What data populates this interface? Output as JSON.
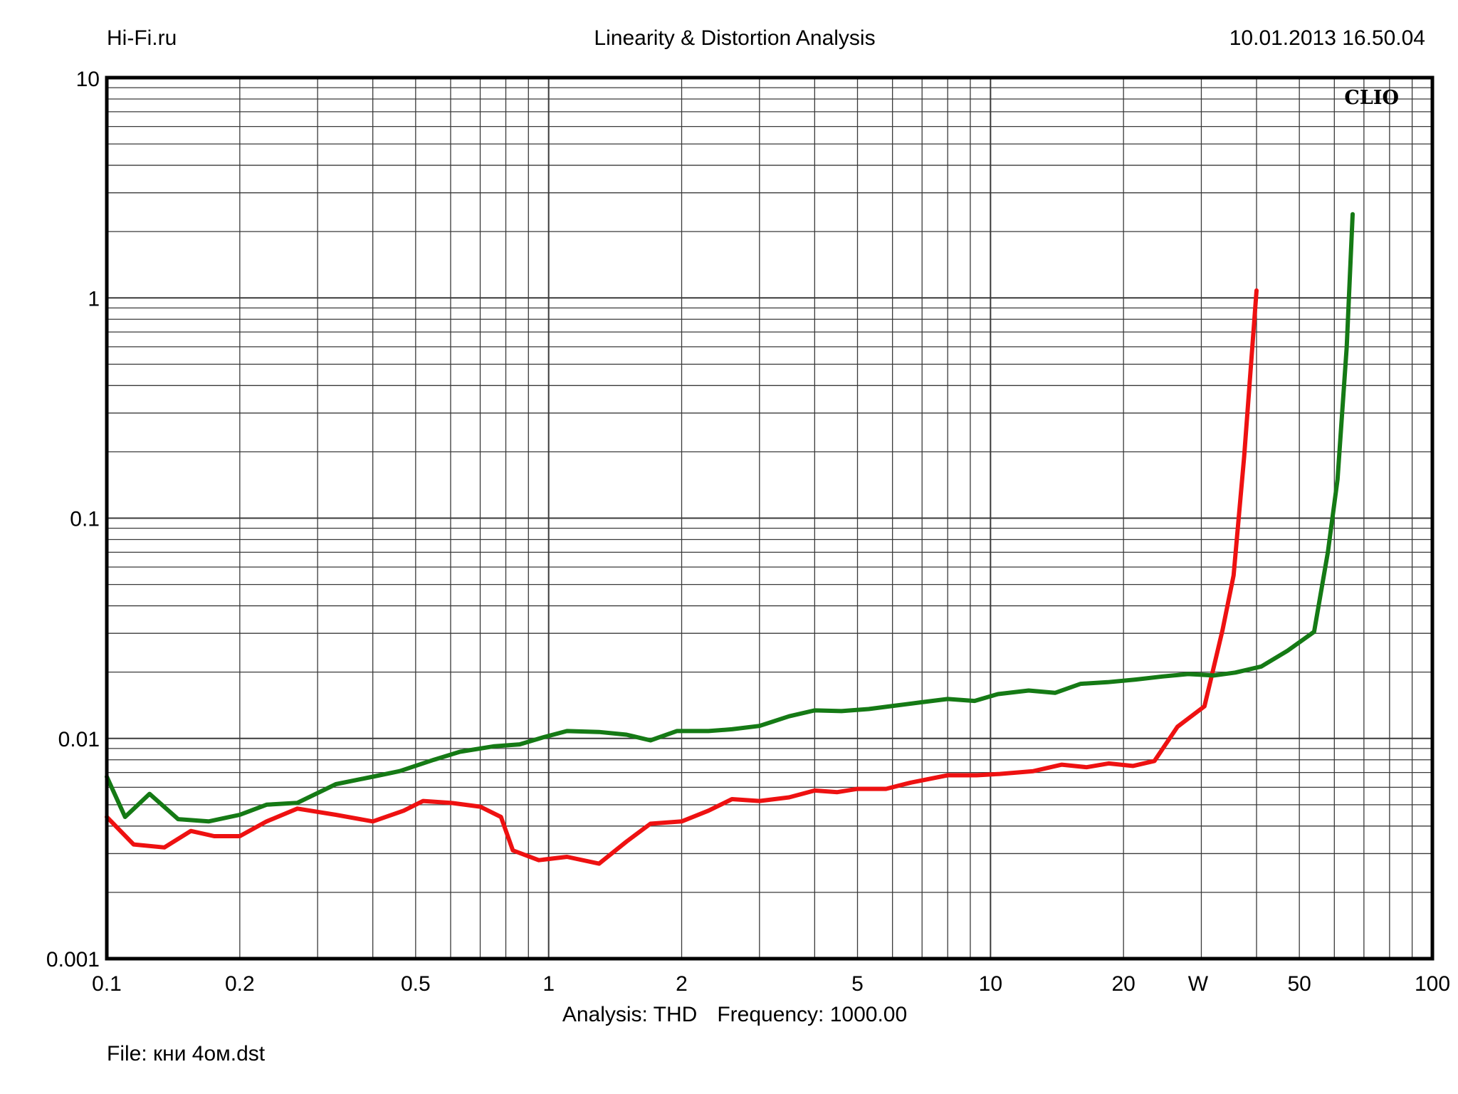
{
  "header": {
    "left": "Hi-Fi.ru",
    "center": "Linearity & Distortion Analysis",
    "right": "10.01.2013 16.50.04"
  },
  "footer": {
    "analysis_label": "Analysis: THD",
    "frequency_label": "Frequency: 1000.00",
    "file_label": "File: кни 4ом.dst"
  },
  "chart_data": {
    "type": "line",
    "title": "Linearity & Distortion Analysis",
    "brand": "CLIO",
    "xlabel": "W",
    "ylabel": "",
    "x_scale": "log",
    "y_scale": "log",
    "xlim": [
      0.1,
      100
    ],
    "ylim": [
      0.001,
      10
    ],
    "grid": true,
    "x_ticks": [
      {
        "value": 0.1,
        "label": "0.1"
      },
      {
        "value": 0.2,
        "label": "0.2"
      },
      {
        "value": 0.5,
        "label": "0.5"
      },
      {
        "value": 1,
        "label": "1"
      },
      {
        "value": 2,
        "label": "2"
      },
      {
        "value": 5,
        "label": "5"
      },
      {
        "value": 10,
        "label": "10"
      },
      {
        "value": 20,
        "label": "20"
      },
      {
        "value": 50,
        "label": "50"
      },
      {
        "value": 100,
        "label": "100"
      }
    ],
    "y_ticks": [
      {
        "value": 10,
        "label": "10"
      },
      {
        "value": 1,
        "label": "1"
      },
      {
        "value": 0.1,
        "label": "0.1"
      },
      {
        "value": 0.01,
        "label": "0.01"
      },
      {
        "value": 0.001,
        "label": "0.001"
      }
    ],
    "series": [
      {
        "color": "#ee1111",
        "points": [
          [
            0.1,
            0.0044
          ],
          [
            0.115,
            0.0033
          ],
          [
            0.135,
            0.0032
          ],
          [
            0.155,
            0.0038
          ],
          [
            0.175,
            0.0036
          ],
          [
            0.2,
            0.0036
          ],
          [
            0.23,
            0.0042
          ],
          [
            0.27,
            0.0048
          ],
          [
            0.33,
            0.0045
          ],
          [
            0.4,
            0.0042
          ],
          [
            0.47,
            0.0047
          ],
          [
            0.52,
            0.0052
          ],
          [
            0.6,
            0.0051
          ],
          [
            0.7,
            0.0049
          ],
          [
            0.78,
            0.0044
          ],
          [
            0.83,
            0.0031
          ],
          [
            0.95,
            0.0028
          ],
          [
            1.1,
            0.0029
          ],
          [
            1.3,
            0.0027
          ],
          [
            1.5,
            0.0034
          ],
          [
            1.7,
            0.0041
          ],
          [
            2.0,
            0.0042
          ],
          [
            2.3,
            0.0047
          ],
          [
            2.6,
            0.0053
          ],
          [
            3.0,
            0.0052
          ],
          [
            3.5,
            0.0054
          ],
          [
            4.0,
            0.0058
          ],
          [
            4.5,
            0.0057
          ],
          [
            5.0,
            0.0059
          ],
          [
            5.8,
            0.0059
          ],
          [
            6.6,
            0.0063
          ],
          [
            8.0,
            0.0068
          ],
          [
            9.3,
            0.0068
          ],
          [
            10.5,
            0.0069
          ],
          [
            12.5,
            0.0071
          ],
          [
            14.5,
            0.0076
          ],
          [
            16.5,
            0.0074
          ],
          [
            18.5,
            0.0077
          ],
          [
            21.0,
            0.0075
          ],
          [
            23.5,
            0.0079
          ],
          [
            26.5,
            0.0113
          ],
          [
            30.5,
            0.014
          ],
          [
            33.5,
            0.031
          ],
          [
            35.5,
            0.055
          ],
          [
            37.5,
            0.19
          ],
          [
            40.0,
            1.08
          ]
        ]
      },
      {
        "color": "#157a15",
        "points": [
          [
            0.1,
            0.0067
          ],
          [
            0.11,
            0.0044
          ],
          [
            0.125,
            0.0056
          ],
          [
            0.145,
            0.0043
          ],
          [
            0.17,
            0.0042
          ],
          [
            0.2,
            0.0045
          ],
          [
            0.23,
            0.005
          ],
          [
            0.27,
            0.0051
          ],
          [
            0.33,
            0.0062
          ],
          [
            0.4,
            0.0067
          ],
          [
            0.46,
            0.0071
          ],
          [
            0.55,
            0.008
          ],
          [
            0.63,
            0.0087
          ],
          [
            0.75,
            0.0092
          ],
          [
            0.86,
            0.0094
          ],
          [
            0.97,
            0.0101
          ],
          [
            1.1,
            0.0108
          ],
          [
            1.3,
            0.0107
          ],
          [
            1.5,
            0.0104
          ],
          [
            1.7,
            0.0098
          ],
          [
            1.95,
            0.0108
          ],
          [
            2.3,
            0.0108
          ],
          [
            2.6,
            0.011
          ],
          [
            3.0,
            0.0114
          ],
          [
            3.5,
            0.0126
          ],
          [
            4.0,
            0.0134
          ],
          [
            4.6,
            0.0133
          ],
          [
            5.3,
            0.0136
          ],
          [
            6.1,
            0.0141
          ],
          [
            7.0,
            0.0146
          ],
          [
            8.0,
            0.0151
          ],
          [
            9.2,
            0.0148
          ],
          [
            10.4,
            0.0159
          ],
          [
            12.2,
            0.0165
          ],
          [
            14.0,
            0.0161
          ],
          [
            16.0,
            0.0177
          ],
          [
            18.4,
            0.018
          ],
          [
            21.3,
            0.0185
          ],
          [
            24.5,
            0.0191
          ],
          [
            28.0,
            0.0196
          ],
          [
            32.0,
            0.0193
          ],
          [
            35.8,
            0.0199
          ],
          [
            41.0,
            0.0212
          ],
          [
            47.0,
            0.025
          ],
          [
            54.0,
            0.0305
          ],
          [
            58.0,
            0.07
          ],
          [
            61.0,
            0.15
          ],
          [
            64.0,
            0.6
          ],
          [
            66.0,
            2.4
          ]
        ]
      }
    ]
  }
}
